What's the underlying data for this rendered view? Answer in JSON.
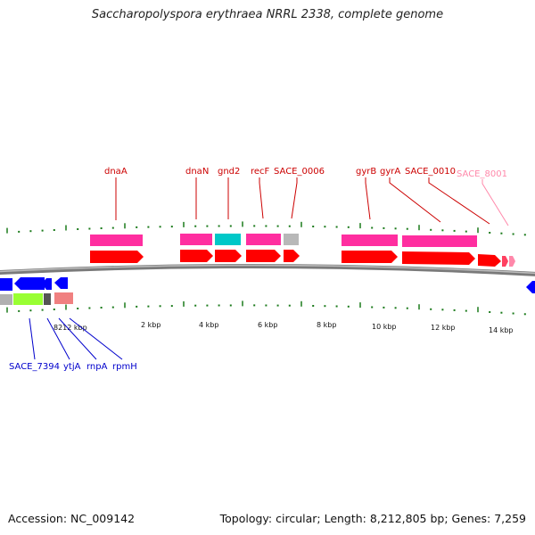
{
  "title": "Saccharopolyspora erythraea NRRL 2338, complete genome",
  "accession": "Accession: NC_009142",
  "summary": "Topology: circular; Length: 8,212,805 bp; Genes: 7,259",
  "colors": {
    "gene": "#ff0000",
    "cds": "#ff2ea0",
    "rna": "#00c8c8",
    "pseudo": "#b0b0b0",
    "reverse_gene": "#0000ff",
    "reverse_other": "#99ff33",
    "reverse_rna": "#f08080",
    "label_forward": "#cc0000",
    "label_reverse": "#0000cc",
    "label_faint": "#ff88aa",
    "tick": "#1a7a1a",
    "backbone": "#808080"
  },
  "scale": {
    "tick_labels": [
      "2 kbp",
      "4 kbp",
      "6 kbp",
      "8 kbp",
      "10 kbp",
      "12 kbp",
      "14 kbp"
    ],
    "end_label": "8212 kbp"
  },
  "forward_labels": [
    "dnaA",
    "dnaN",
    "gnd2",
    "recF",
    "SACE_0006",
    "gyrB",
    "gyrA",
    "SACE_0010",
    "SACE_8001"
  ],
  "reverse_labels": [
    "SACE_7394",
    "ytjA",
    "rnpA",
    "rpmH"
  ]
}
